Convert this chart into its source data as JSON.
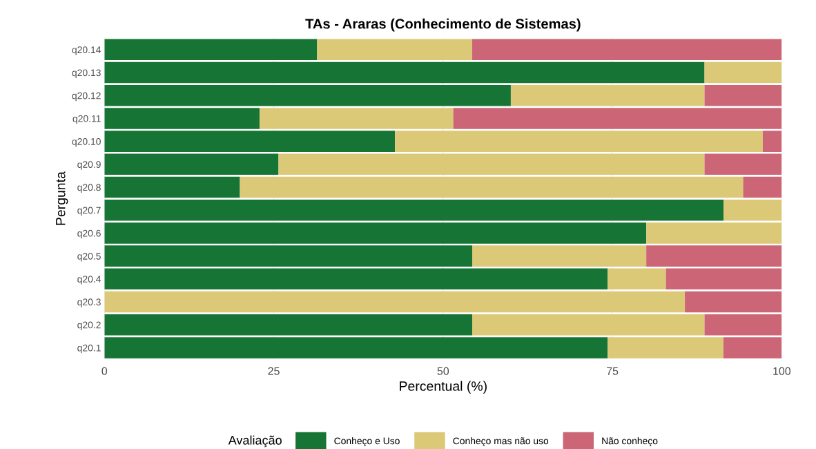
{
  "chart_data": {
    "type": "bar",
    "orientation": "horizontal",
    "stacked": true,
    "title": "TAs - Araras (Conhecimento de Sistemas)",
    "xlabel": "Percentual (%)",
    "ylabel": "Pergunta",
    "legend_title": "Avaliação",
    "legend": "bottom",
    "grid": true,
    "categories": [
      "q20.14",
      "q20.13",
      "q20.12",
      "q20.11",
      "q20.10",
      "q20.9",
      "q20.8",
      "q20.7",
      "q20.6",
      "q20.5",
      "q20.4",
      "q20.3",
      "q20.2",
      "q20.1"
    ],
    "xlim": [
      0,
      100
    ],
    "xticks": [
      0,
      25,
      50,
      75,
      100
    ],
    "series": [
      {
        "name": "Conheço e Uso",
        "color": "#167534",
        "values": [
          31.4,
          88.6,
          60.0,
          22.9,
          42.9,
          25.7,
          20.0,
          91.4,
          80.0,
          54.3,
          74.3,
          0,
          54.3,
          74.3
        ]
      },
      {
        "name": "Conheço mas não uso",
        "color": "#dbc978",
        "values": [
          22.9,
          11.4,
          28.6,
          28.6,
          54.3,
          62.9,
          74.3,
          8.6,
          20.0,
          25.7,
          8.6,
          85.7,
          34.3,
          17.1
        ]
      },
      {
        "name": "Não conheço",
        "color": "#cc6677",
        "values": [
          45.7,
          0,
          11.4,
          48.5,
          2.8,
          11.4,
          5.7,
          0,
          0,
          20.0,
          17.1,
          14.3,
          11.4,
          8.6
        ]
      }
    ]
  }
}
